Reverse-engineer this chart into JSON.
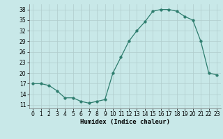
{
  "x": [
    0,
    1,
    2,
    3,
    4,
    5,
    6,
    7,
    8,
    9,
    10,
    11,
    12,
    13,
    14,
    15,
    16,
    17,
    18,
    19,
    20,
    21,
    22,
    23
  ],
  "y": [
    17,
    17,
    16.5,
    15,
    13,
    13,
    12,
    11.5,
    12,
    12.5,
    20,
    24.5,
    29,
    32,
    34.5,
    37.5,
    38,
    38,
    37.5,
    36,
    35,
    29,
    20,
    19.5
  ],
  "line_color": "#2e7d6e",
  "marker_color": "#2e7d6e",
  "bg_color": "#c8e8e8",
  "grid_color": "#b0cccc",
  "xlabel": "Humidex (Indice chaleur)",
  "xlim": [
    -0.5,
    23.5
  ],
  "ylim": [
    10,
    39.5
  ],
  "yticks": [
    11,
    14,
    17,
    20,
    23,
    26,
    29,
    32,
    35,
    38
  ],
  "xticks": [
    0,
    1,
    2,
    3,
    4,
    5,
    6,
    7,
    8,
    9,
    10,
    11,
    12,
    13,
    14,
    15,
    16,
    17,
    18,
    19,
    20,
    21,
    22,
    23
  ],
  "xlabel_fontsize": 6.5,
  "tick_fontsize": 5.5,
  "marker_size": 2.5,
  "linewidth": 0.9
}
